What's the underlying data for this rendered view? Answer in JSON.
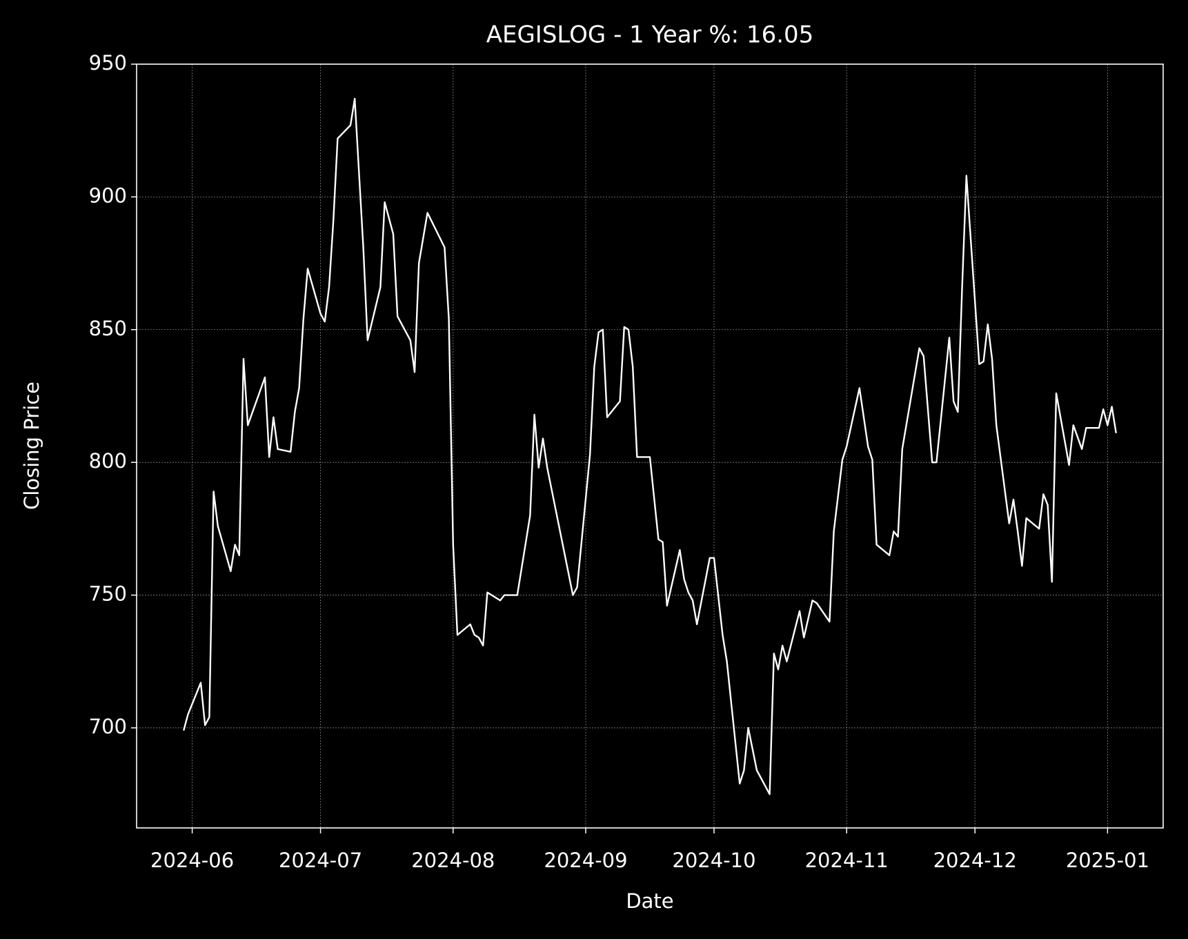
{
  "chart_data": {
    "type": "line",
    "title": "AEGISLOG - 1 Year %: 16.05",
    "x_label": "Date",
    "y_label": "Closing Price",
    "color": "#ffffff",
    "grid": true,
    "xlim": [
      "2024-05-19",
      "2025-01-14"
    ],
    "ylim": [
      662.3,
      950
    ],
    "yticks": [
      700,
      750,
      800,
      850,
      900,
      950
    ],
    "xticks": [
      {
        "value": "2024-06-01",
        "label": "2024-06"
      },
      {
        "value": "2024-07-01",
        "label": "2024-07"
      },
      {
        "value": "2024-08-01",
        "label": "2024-08"
      },
      {
        "value": "2024-09-01",
        "label": "2024-09"
      },
      {
        "value": "2024-10-01",
        "label": "2024-10"
      },
      {
        "value": "2024-11-01",
        "label": "2024-11"
      },
      {
        "value": "2024-12-01",
        "label": "2024-12"
      },
      {
        "value": "2025-01-01",
        "label": "2025-01"
      }
    ],
    "x": [
      "2024-05-30",
      "2024-05-31",
      "2024-06-03",
      "2024-06-04",
      "2024-06-05",
      "2024-06-06",
      "2024-06-07",
      "2024-06-10",
      "2024-06-11",
      "2024-06-12",
      "2024-06-13",
      "2024-06-14",
      "2024-06-18",
      "2024-06-19",
      "2024-06-20",
      "2024-06-21",
      "2024-06-24",
      "2024-06-25",
      "2024-06-26",
      "2024-06-27",
      "2024-06-28",
      "2024-07-01",
      "2024-07-02",
      "2024-07-03",
      "2024-07-04",
      "2024-07-05",
      "2024-07-08",
      "2024-07-09",
      "2024-07-11",
      "2024-07-12",
      "2024-07-15",
      "2024-07-16",
      "2024-07-18",
      "2024-07-19",
      "2024-07-22",
      "2024-07-23",
      "2024-07-24",
      "2024-07-26",
      "2024-07-30",
      "2024-07-31",
      "2024-08-01",
      "2024-08-02",
      "2024-08-05",
      "2024-08-06",
      "2024-08-07",
      "2024-08-08",
      "2024-08-09",
      "2024-08-12",
      "2024-08-13",
      "2024-08-14",
      "2024-08-16",
      "2024-08-19",
      "2024-08-20",
      "2024-08-21",
      "2024-08-22",
      "2024-08-23",
      "2024-08-26",
      "2024-08-28",
      "2024-08-29",
      "2024-08-30",
      "2024-09-02",
      "2024-09-03",
      "2024-09-04",
      "2024-09-05",
      "2024-09-06",
      "2024-09-09",
      "2024-09-10",
      "2024-09-11",
      "2024-09-12",
      "2024-09-13",
      "2024-09-16",
      "2024-09-18",
      "2024-09-19",
      "2024-09-20",
      "2024-09-23",
      "2024-09-24",
      "2024-09-25",
      "2024-09-26",
      "2024-09-27",
      "2024-09-30",
      "2024-10-01",
      "2024-10-03",
      "2024-10-04",
      "2024-10-07",
      "2024-10-08",
      "2024-10-09",
      "2024-10-11",
      "2024-10-14",
      "2024-10-15",
      "2024-10-16",
      "2024-10-17",
      "2024-10-18",
      "2024-10-21",
      "2024-10-22",
      "2024-10-24",
      "2024-10-25",
      "2024-10-28",
      "2024-10-29",
      "2024-10-31",
      "2024-11-01",
      "2024-11-04",
      "2024-11-06",
      "2024-11-07",
      "2024-11-08",
      "2024-11-11",
      "2024-11-12",
      "2024-11-13",
      "2024-11-14",
      "2024-11-18",
      "2024-11-19",
      "2024-11-21",
      "2024-11-22",
      "2024-11-25",
      "2024-11-26",
      "2024-11-27",
      "2024-11-28",
      "2024-11-29",
      "2024-12-02",
      "2024-12-03",
      "2024-12-04",
      "2024-12-05",
      "2024-12-06",
      "2024-12-09",
      "2024-12-10",
      "2024-12-11",
      "2024-12-12",
      "2024-12-13",
      "2024-12-16",
      "2024-12-17",
      "2024-12-18",
      "2024-12-19",
      "2024-12-20",
      "2024-12-23",
      "2024-12-24",
      "2024-12-26",
      "2024-12-27",
      "2024-12-30",
      "2024-12-31",
      "2025-01-01",
      "2025-01-02",
      "2025-01-03"
    ],
    "values": [
      699,
      705,
      717,
      701,
      704,
      789,
      776,
      759,
      769,
      765,
      839,
      814,
      832,
      802,
      817,
      805,
      804,
      819,
      828,
      854,
      873,
      856,
      853,
      866,
      891,
      922,
      927,
      937,
      881,
      846,
      866,
      898,
      886,
      855,
      846,
      834,
      875,
      894,
      881,
      854,
      769,
      735,
      739,
      735,
      734,
      731,
      751,
      748,
      750,
      750,
      750,
      780,
      818,
      798,
      809,
      798,
      774,
      758,
      750,
      753,
      803,
      836,
      849,
      850,
      817,
      823,
      851,
      850,
      836,
      802,
      802,
      771,
      770,
      746,
      767,
      756,
      751,
      748,
      739,
      764,
      764,
      735,
      725,
      679,
      684,
      700,
      684,
      675,
      728,
      722,
      731,
      725,
      744,
      734,
      748,
      747,
      740,
      774,
      801,
      806,
      828,
      806,
      801,
      769,
      765,
      774,
      772,
      805,
      843,
      840,
      800,
      800,
      847,
      823,
      819,
      866,
      908,
      837,
      838,
      852,
      839,
      814,
      777,
      786,
      774,
      761,
      779,
      775,
      788,
      784,
      755,
      826,
      799,
      814,
      805,
      813,
      813,
      820,
      814,
      821,
      811
    ]
  }
}
